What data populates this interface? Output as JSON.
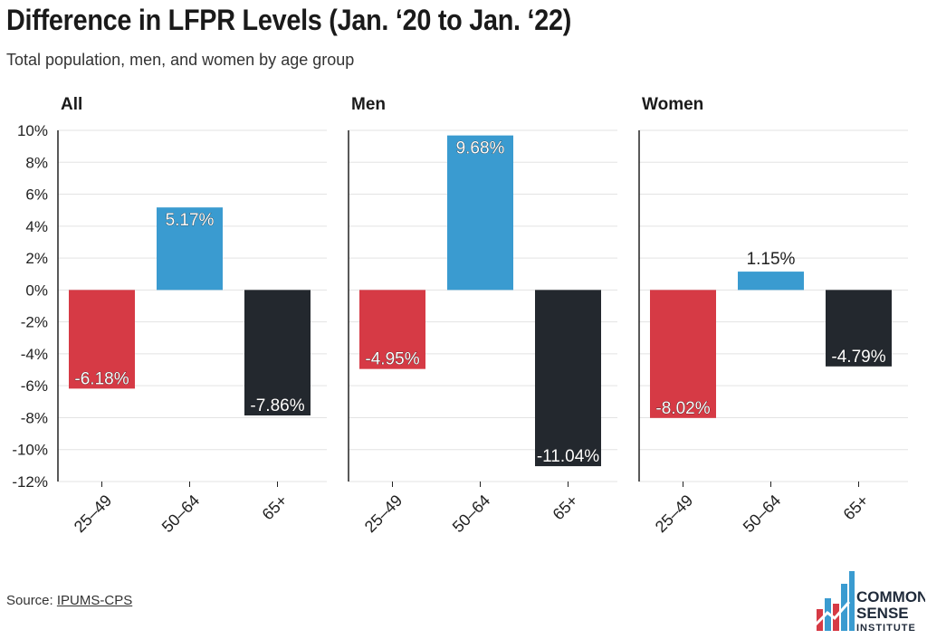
{
  "title": "Difference in LFPR Levels (Jan. ‘20 to Jan. ‘22)",
  "subtitle": "Total population, men, and women by age group",
  "source_label": "Source: ",
  "source_link": "IPUMS-CPS",
  "logo": {
    "line1": "COMMON",
    "line2": "SENSE",
    "line3": "INSTITUTE"
  },
  "colors": {
    "red": "#d63a45",
    "blue": "#3a9bd0",
    "dark": "#23282e",
    "grid": "#e3e3e3"
  },
  "chart_data": [
    {
      "type": "bar",
      "title": "All",
      "categories": [
        "25–49",
        "50–64",
        "65+"
      ],
      "values": [
        -6.18,
        5.17,
        -7.86
      ],
      "labels": [
        "-6.18%",
        "5.17%",
        "-7.86%"
      ],
      "ylim": [
        -12,
        10
      ]
    },
    {
      "type": "bar",
      "title": "Men",
      "categories": [
        "25–49",
        "50–64",
        "65+"
      ],
      "values": [
        -4.95,
        9.68,
        -11.04
      ],
      "labels": [
        "-4.95%",
        "9.68%",
        "-11.04%"
      ],
      "ylim": [
        -12,
        10
      ]
    },
    {
      "type": "bar",
      "title": "Women",
      "categories": [
        "25–49",
        "50–64",
        "65+"
      ],
      "values": [
        -8.02,
        1.15,
        -4.79
      ],
      "labels": [
        "-8.02%",
        "1.15%",
        "-4.79%"
      ],
      "ylim": [
        -12,
        10
      ]
    }
  ],
  "y_ticks": [
    10,
    8,
    6,
    4,
    2,
    0,
    -2,
    -4,
    -6,
    -8,
    -10,
    -12
  ],
  "y_tick_labels": [
    "10%",
    "8%",
    "6%",
    "4%",
    "2%",
    "0%",
    "-2%",
    "-4%",
    "-6%",
    "-8%",
    "-10%",
    "-12%"
  ]
}
